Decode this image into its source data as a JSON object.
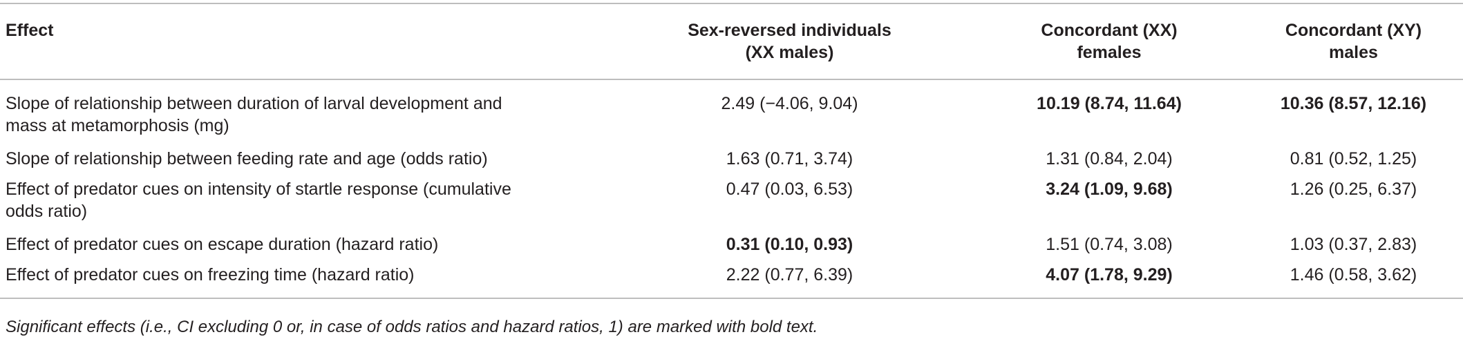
{
  "table": {
    "headers": [
      "Effect",
      "Sex-reversed individuals (XX males)",
      "Concordant (XX) females",
      "Concordant (XY) males"
    ],
    "rows": [
      {
        "effect": "Slope of relationship between duration of larval development and mass at metamorphosis (mg)",
        "sex_reversed": "2.49 (−4.06, 9.04)",
        "xx_females": "10.19 (8.74, 11.64)",
        "xy_males": "10.36 (8.57, 12.16)",
        "bold": [
          false,
          true,
          true
        ]
      },
      {
        "effect": "Slope of relationship between feeding rate and age (odds ratio)",
        "sex_reversed": "1.63 (0.71, 3.74)",
        "xx_females": "1.31 (0.84, 2.04)",
        "xy_males": "0.81 (0.52, 1.25)",
        "bold": [
          false,
          false,
          false
        ]
      },
      {
        "effect": "Effect of predator cues on intensity of startle response (cumulative odds ratio)",
        "sex_reversed": "0.47 (0.03, 6.53)",
        "xx_females": "3.24 (1.09, 9.68)",
        "xy_males": "1.26 (0.25, 6.37)",
        "bold": [
          false,
          true,
          false
        ]
      },
      {
        "effect": "Effect of predator cues on escape duration (hazard ratio)",
        "sex_reversed": "0.31 (0.10, 0.93)",
        "xx_females": "1.51 (0.74, 3.08)",
        "xy_males": "1.03 (0.37, 2.83)",
        "bold": [
          true,
          false,
          false
        ]
      },
      {
        "effect": "Effect of predator cues on freezing time (hazard ratio)",
        "sex_reversed": "2.22 (0.77, 6.39)",
        "xx_females": "4.07 (1.78, 9.29)",
        "xy_males": "1.46 (0.58, 3.62)",
        "bold": [
          false,
          true,
          false
        ]
      }
    ],
    "footnote": "Significant effects (i.e., CI excluding 0 or, in case of odds ratios and hazard ratios, 1) are marked with bold text."
  }
}
